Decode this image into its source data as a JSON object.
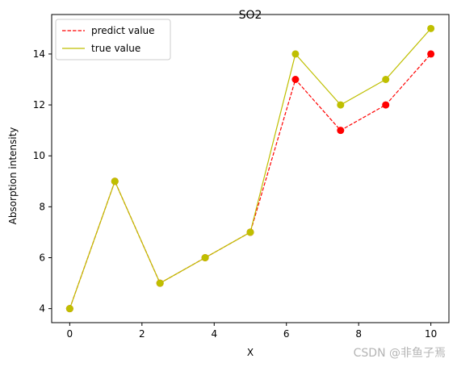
{
  "watermark": "CSDN @非鱼子焉",
  "chart_data": {
    "type": "line",
    "title": "SO2",
    "xlabel": "X",
    "ylabel": "Absorption intensity",
    "x": [
      0,
      1.25,
      2.5,
      3.75,
      5,
      6.25,
      7.5,
      8.75,
      10
    ],
    "series": [
      {
        "name": "predict value",
        "values": [
          4,
          9,
          5,
          6,
          7,
          13,
          11,
          12,
          14
        ],
        "color": "#ff0000",
        "linestyle": "dashed",
        "marker": "circle"
      },
      {
        "name": "true value",
        "values": [
          4,
          9,
          5,
          6,
          7,
          14,
          12,
          13,
          15
        ],
        "color": "#bfbf00",
        "linestyle": "solid",
        "marker": "circle"
      }
    ],
    "xlim": [
      -0.5,
      10.5
    ],
    "ylim": [
      3.45,
      15.55
    ],
    "xticks": [
      0,
      2,
      4,
      6,
      8,
      10
    ],
    "yticks": [
      4,
      6,
      8,
      10,
      12,
      14
    ],
    "grid": false,
    "legend_position": "top-left"
  }
}
